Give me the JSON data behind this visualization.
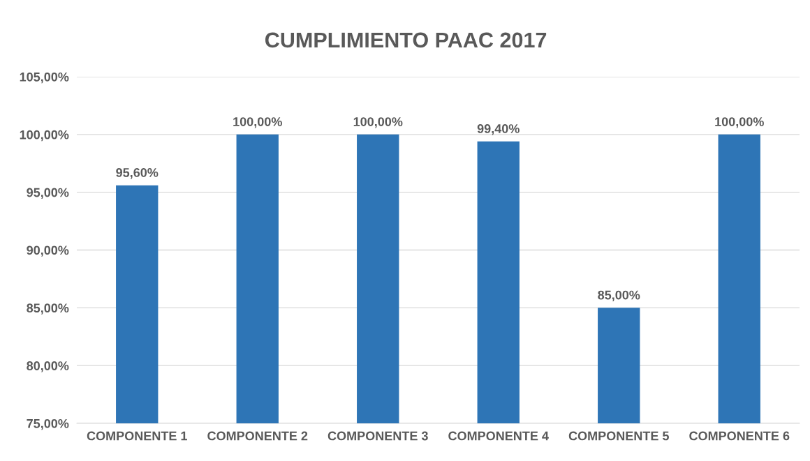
{
  "chart_data": {
    "type": "bar",
    "title": "CUMPLIMIENTO PAAC 2017",
    "categories": [
      "COMPONENTE 1",
      "COMPONENTE 2",
      "COMPONENTE 3",
      "COMPONENTE 4",
      "COMPONENTE 5",
      "COMPONENTE 6"
    ],
    "values": [
      95.6,
      100,
      100,
      99.4,
      85,
      100
    ],
    "value_labels": [
      "95,60%",
      "100,00%",
      "100,00%",
      "99,40%",
      "85,00%",
      "100,00%"
    ],
    "color": "#2e75b6",
    "ylim": [
      75,
      105
    ],
    "yticks": [
      {
        "value": 75,
        "label": "75,00%"
      },
      {
        "value": 80,
        "label": "80,00%"
      },
      {
        "value": 85,
        "label": "85,00%"
      },
      {
        "value": 90,
        "label": "90,00%"
      },
      {
        "value": 95,
        "label": "95,00%"
      },
      {
        "value": 100,
        "label": "100,00%"
      },
      {
        "value": 105,
        "label": "105,00%"
      }
    ],
    "grid": "y",
    "legend": false
  }
}
